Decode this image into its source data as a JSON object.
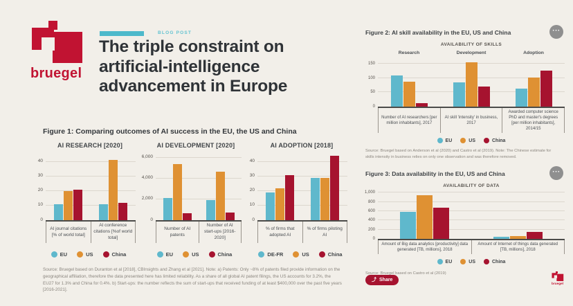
{
  "brand": {
    "name": "bruegel",
    "red": "#C11332",
    "teal": "#4DB9CB"
  },
  "header": {
    "kicker": "BLOG POST",
    "title_lines": [
      "The triple constraint on",
      "artificial-intelligence",
      "advancement in Europe"
    ]
  },
  "icons": {
    "menu": "···",
    "share": "⤴"
  },
  "share": {
    "label": "Share"
  },
  "chart_colors": [
    "#5FB8CC",
    "#DF9133",
    "#A6132F"
  ],
  "chart_data": [
    {
      "type": "bar",
      "title": "Figure 1: Comparing outcomes of AI success in the EU, the US and China",
      "panels": [
        {
          "title": "AI RESEARCH [2020]",
          "scale_max": 45,
          "ticks": [
            0,
            10,
            20,
            30,
            40
          ],
          "series": [
            "EU",
            "US",
            "China"
          ],
          "groups": [
            {
              "label": "AI journal citations [% of world total]",
              "values": [
                11,
                20,
                21
              ]
            },
            {
              "label": "AI conference citations [%of world total]",
              "values": [
                11,
                41,
                12
              ]
            }
          ],
          "legend": [
            "EU",
            "US",
            "China"
          ]
        },
        {
          "title": "AI DEVELOPMENT [2020]",
          "scale_max": 6300,
          "ticks": [
            0,
            2000,
            4000,
            6000
          ],
          "series": [
            "EU",
            "US",
            "China"
          ],
          "groups": [
            {
              "label": "Number of AI patents",
              "values": [
                2150,
                5350,
                650
              ]
            },
            {
              "label": "Number of AI start-ups [2016-2020]",
              "values": [
                1950,
                4650,
                750
              ]
            }
          ],
          "legend": [
            "EU",
            "US",
            "China"
          ]
        },
        {
          "title": "AI ADOPTION [2018]",
          "scale_max": 45,
          "ticks": [
            0,
            10,
            20,
            30,
            40
          ],
          "series": [
            "DE-FR",
            "US",
            "China"
          ],
          "groups": [
            {
              "label": "% of firms that adopted AI",
              "values": [
                19,
                22,
                31
              ]
            },
            {
              "label": "% of firms piloting AI",
              "values": [
                29,
                29,
                44
              ]
            }
          ],
          "legend": [
            "DE-FR",
            "US",
            "China"
          ]
        }
      ],
      "source": "Source: Bruegel based on Duranton et al [2018], CBInsights and Zhang et al [2021]. Note: a) Patents: Only ~8% of patents filed provide information on the geographical affiliation, therefore the data presented here has limited reliability. As a share of all global AI patent filings, the US accounts for 3.2%, the EU27 for 1.3% and China for 0.4%. b) Start-ups: the number reflects the sum of start-ups that received funding of at least $400,000 over the past five years [2016-2021]."
    },
    {
      "type": "bar",
      "title": "Figure 2: AI skill availability in the EU, US and China",
      "heading": "AVAILABILITY OF SKILLS",
      "panels": [
        {
          "scale_max": 170,
          "ticks": [
            0,
            50,
            100,
            150
          ],
          "series": [
            "EU",
            "US",
            "China"
          ],
          "group_titles": [
            "Research",
            "Development",
            "Adoption"
          ],
          "groups": [
            {
              "label": "Number of AI researchers [per million inhabitants], 2017",
              "values": [
                110,
                88,
                12
              ]
            },
            {
              "label": "AI skill 'intensity' in business, 2017",
              "values": [
                85,
                156,
                70
              ]
            },
            {
              "label": "Awarded computer science PhD and master's degrees [per million inhabitants], 2014/15",
              "values": [
                64,
                102,
                126
              ]
            }
          ],
          "legend": [
            "EU",
            "US",
            "China"
          ]
        }
      ],
      "source": "Source: Bruegel based on Anderson et al (2020) and Castro et al (2019). Note: The Chinese estimate for skills intensity in business relies on only one observation and was therefore removed."
    },
    {
      "type": "bar",
      "title": "Figure 3: Data availability in the EU, US and China",
      "heading": "AVAILABILITY OF DATA",
      "panels": [
        {
          "scale_max": 1050,
          "ticks": [
            0,
            200,
            400,
            600,
            800,
            1000
          ],
          "series": [
            "EU",
            "US",
            "China"
          ],
          "groups": [
            {
              "label": "Amount of Big data analytics [productivity] data generated [TB, millions], 2018",
              "values": [
                580,
                950,
                680
              ]
            },
            {
              "label": "Amount of Internet of things data generated [TB, millions], 2018",
              "values": [
                50,
                60,
                150
              ]
            }
          ],
          "legend": [
            "EU",
            "US",
            "China"
          ]
        }
      ],
      "source": "Source: Bruegel based on Castro et al (2019)"
    }
  ]
}
